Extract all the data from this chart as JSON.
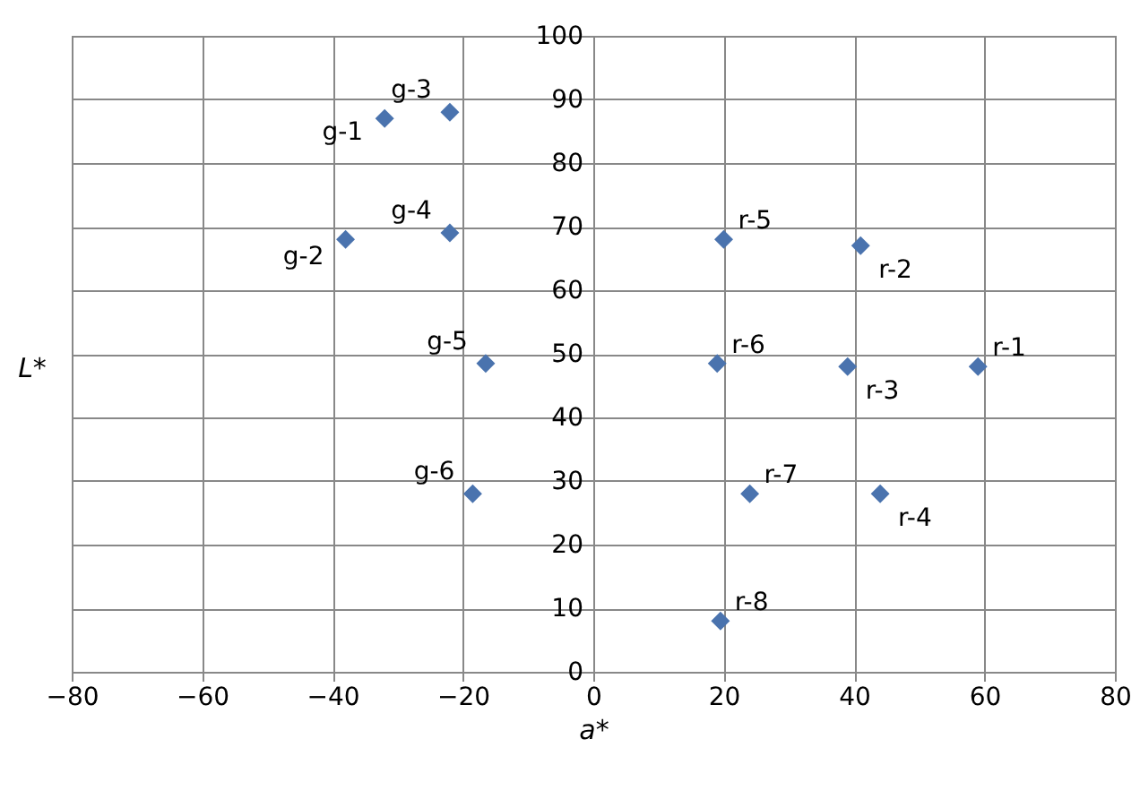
{
  "chart_data": {
    "type": "scatter",
    "xlabel": "a*",
    "ylabel": "L*",
    "x": [
      59,
      41,
      39,
      44,
      20,
      19,
      24,
      19.5,
      -32,
      -38,
      -22,
      -22,
      -16.5,
      -18.5
    ],
    "series": [
      {
        "color": "#4a73ae",
        "values": [
          48,
          67,
          48,
          28,
          68,
          48.5,
          28,
          8,
          87,
          68,
          88,
          69,
          48.5,
          28
        ]
      }
    ],
    "annotations": [
      {
        "text": "r-1",
        "x": 59,
        "y": 48
      },
      {
        "text": "r-2",
        "x": 41,
        "y": 67
      },
      {
        "text": "r-3",
        "x": 39,
        "y": 48
      },
      {
        "text": "r-4",
        "x": 44,
        "y": 28
      },
      {
        "text": "r-5",
        "x": 20,
        "y": 68
      },
      {
        "text": "r-6",
        "x": 19,
        "y": 48.5
      },
      {
        "text": "r-7",
        "x": 24,
        "y": 28
      },
      {
        "text": "r-8",
        "x": 19.5,
        "y": 8
      },
      {
        "text": "g-1",
        "x": -32,
        "y": 87
      },
      {
        "text": "g-2",
        "x": -38,
        "y": 68
      },
      {
        "text": "g-3",
        "x": -22,
        "y": 88
      },
      {
        "text": "g-4",
        "x": -22,
        "y": 69
      },
      {
        "text": "g-5",
        "x": -16.5,
        "y": 48.5
      },
      {
        "text": "g-6",
        "x": -18.5,
        "y": 28
      }
    ],
    "xlim": [
      -80,
      80
    ],
    "xticks": [
      -80,
      -60,
      -40,
      -20,
      0,
      20,
      40,
      60,
      80
    ],
    "ylim": [
      0,
      100
    ],
    "yticks": [
      0,
      10,
      20,
      30,
      40,
      50,
      60,
      70,
      80,
      90,
      100
    ],
    "grid": true,
    "marker": "diamond"
  }
}
